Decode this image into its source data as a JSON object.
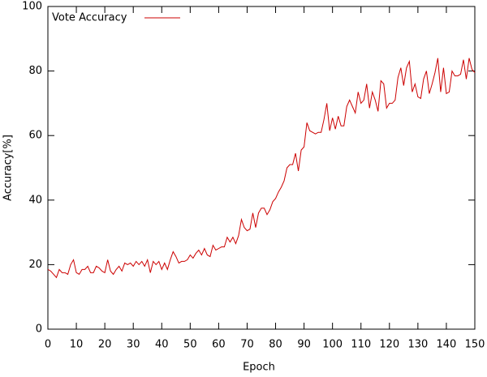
{
  "chart_data": {
    "type": "line",
    "x_label": "Epoch",
    "y_label": "Accuracy[%]",
    "x": [
      0,
      1,
      2,
      3,
      4,
      5,
      6,
      7,
      8,
      9,
      10,
      11,
      12,
      13,
      14,
      15,
      16,
      17,
      18,
      19,
      20,
      21,
      22,
      23,
      24,
      25,
      26,
      27,
      28,
      29,
      30,
      31,
      32,
      33,
      34,
      35,
      36,
      37,
      38,
      39,
      40,
      41,
      42,
      43,
      44,
      45,
      46,
      47,
      48,
      49,
      50,
      51,
      52,
      53,
      54,
      55,
      56,
      57,
      58,
      59,
      60,
      61,
      62,
      63,
      64,
      65,
      66,
      67,
      68,
      69,
      70,
      71,
      72,
      73,
      74,
      75,
      76,
      77,
      78,
      79,
      80,
      81,
      82,
      83,
      84,
      85,
      86,
      87,
      88,
      89,
      90,
      91,
      92,
      93,
      94,
      95,
      96,
      97,
      98,
      99,
      100,
      101,
      102,
      103,
      104,
      105,
      106,
      107,
      108,
      109,
      110,
      111,
      112,
      113,
      114,
      115,
      116,
      117,
      118,
      119,
      120,
      121,
      122,
      123,
      124,
      125,
      126,
      127,
      128,
      129,
      130,
      131,
      132,
      133,
      134,
      135,
      136,
      137,
      138,
      139,
      140,
      141,
      142,
      143,
      144,
      145,
      146,
      147,
      148,
      149,
      150
    ],
    "series": [
      {
        "name": "Vote Accuracy",
        "color": "#cc0000",
        "values": [
          18.5,
          18,
          17,
          16,
          18.5,
          17.5,
          17.5,
          17,
          20,
          21.5,
          17.5,
          17,
          18.5,
          18.5,
          19.5,
          17.5,
          17.5,
          19.5,
          19,
          18,
          17.5,
          21.5,
          18,
          17,
          18.5,
          19.5,
          18,
          20.5,
          20,
          20.5,
          19.5,
          21,
          20,
          21,
          19.5,
          21.5,
          17.5,
          21,
          20,
          21,
          18.5,
          20.5,
          18.5,
          21.5,
          24,
          22.5,
          20.5,
          21,
          21,
          21.5,
          23,
          22,
          23.5,
          24.5,
          23,
          25,
          23,
          22.5,
          26,
          24.5,
          25,
          25.5,
          25.5,
          28.5,
          27,
          28.5,
          26.5,
          29,
          34,
          31.5,
          30.5,
          31,
          36,
          31.5,
          36,
          37.5,
          37.5,
          35.5,
          37,
          39.5,
          40.5,
          42.5,
          44,
          46,
          50,
          51,
          51,
          54.5,
          49,
          55.5,
          56.5,
          64,
          61.5,
          61,
          60.5,
          61,
          61,
          65,
          70,
          61.5,
          65.5,
          62,
          66,
          63,
          63,
          69,
          71,
          69,
          67,
          73.5,
          70,
          71,
          76,
          68.5,
          73.5,
          71,
          67.5,
          77,
          76,
          68.5,
          70,
          70,
          71,
          78,
          81,
          75.5,
          81,
          83,
          73.5,
          76,
          72,
          71.5,
          77.5,
          80,
          73,
          76,
          79.5,
          84,
          73.5,
          81,
          73,
          73.5,
          80,
          78.5,
          78.5,
          79,
          83.5,
          77.5,
          84,
          80.5,
          79.5
        ]
      }
    ],
    "xlim": [
      0,
      150
    ],
    "ylim": [
      0,
      100
    ],
    "xticks": [
      0,
      10,
      20,
      30,
      40,
      50,
      60,
      70,
      80,
      90,
      100,
      110,
      120,
      130,
      140,
      150
    ],
    "yticks": [
      0,
      20,
      40,
      60,
      80,
      100
    ],
    "legend": "top-left"
  }
}
